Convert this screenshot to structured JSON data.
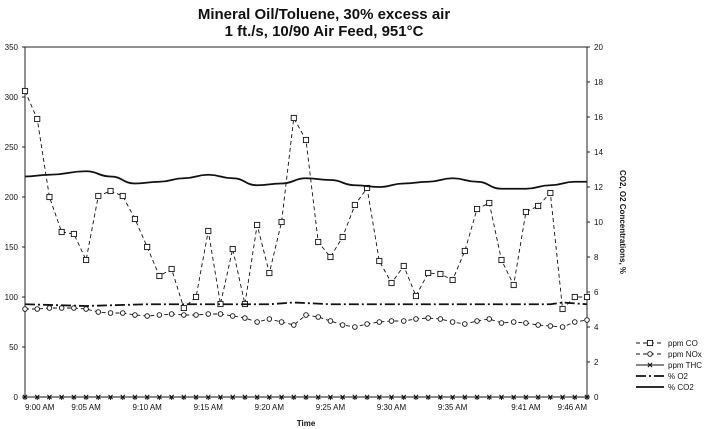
{
  "chart_data": {
    "type": "line",
    "title": "Mineral Oil/Toluene, 30% excess air",
    "subtitle": "1 ft./s, 10/90 Air Feed, 951°C",
    "xlabel": "Time",
    "y2label": "CO2, O2 Concentrations, %",
    "ylim": [
      0,
      350
    ],
    "y2lim": [
      0,
      20
    ],
    "yticks": [
      "0",
      "50",
      "100",
      "150",
      "200",
      "250",
      "300",
      "350"
    ],
    "y2ticks": [
      "0",
      "2",
      "4",
      "6",
      "8",
      "10",
      "12",
      "14",
      "16",
      "18",
      "20"
    ],
    "xlim": [
      0,
      46
    ],
    "xticks": [
      {
        "x": 0,
        "label": "9:00 AM"
      },
      {
        "x": 5,
        "label": "9:05 AM"
      },
      {
        "x": 10,
        "label": "9:10 AM"
      },
      {
        "x": 15,
        "label": "9:15 AM"
      },
      {
        "x": 20,
        "label": "9:20 AM"
      },
      {
        "x": 25,
        "label": "9:25 AM"
      },
      {
        "x": 30,
        "label": "9:30 AM"
      },
      {
        "x": 35,
        "label": "9:35 AM"
      },
      {
        "x": 41,
        "label": "9:41 AM"
      },
      {
        "x": 46,
        "label": "9:46 AM"
      }
    ],
    "legend_position": "bottom-right",
    "series": [
      {
        "name": "ppm CO",
        "axis": "left",
        "style": "dashed-square",
        "x": [
          0,
          1,
          2,
          3,
          4,
          5,
          6,
          7,
          8,
          9,
          10,
          11,
          12,
          13,
          14,
          15,
          16,
          17,
          18,
          19,
          20,
          21,
          22,
          23,
          24,
          25,
          26,
          27,
          28,
          29,
          30,
          31,
          32,
          33,
          34,
          35,
          36,
          37,
          38,
          39,
          40,
          41,
          42,
          43,
          44,
          45,
          46
        ],
        "values": [
          306,
          278,
          200,
          165,
          163,
          137,
          201,
          206,
          201,
          178,
          150,
          121,
          128,
          89,
          100,
          166,
          93,
          148,
          93,
          172,
          124,
          175,
          279,
          257,
          155,
          140,
          160,
          192,
          209,
          136,
          114,
          131,
          101,
          124,
          123,
          117,
          146,
          188,
          194,
          137,
          112,
          185,
          191,
          204,
          88,
          100,
          100
        ]
      },
      {
        "name": "ppm NOx",
        "axis": "left",
        "style": "dashed-circle",
        "x": [
          0,
          1,
          2,
          3,
          4,
          5,
          6,
          7,
          8,
          9,
          10,
          11,
          12,
          13,
          14,
          15,
          16,
          17,
          18,
          19,
          20,
          21,
          22,
          23,
          24,
          25,
          26,
          27,
          28,
          29,
          30,
          31,
          32,
          33,
          34,
          35,
          36,
          37,
          38,
          39,
          40,
          41,
          42,
          43,
          44,
          45,
          46
        ],
        "values": [
          88,
          88,
          89,
          89,
          89,
          88,
          85,
          84,
          84,
          82,
          81,
          82,
          83,
          82,
          82,
          83,
          83,
          81,
          79,
          75,
          78,
          75,
          72,
          82,
          80,
          76,
          72,
          70,
          73,
          75,
          76,
          76,
          78,
          79,
          78,
          75,
          73,
          76,
          78,
          74,
          75,
          74,
          72,
          71,
          70,
          75,
          77
        ]
      },
      {
        "name": "ppm THC",
        "axis": "left",
        "style": "solid-star",
        "x": [
          0,
          1,
          2,
          3,
          4,
          5,
          6,
          7,
          8,
          9,
          10,
          11,
          12,
          13,
          14,
          15,
          16,
          17,
          18,
          19,
          20,
          21,
          22,
          23,
          24,
          25,
          26,
          27,
          28,
          29,
          30,
          31,
          32,
          33,
          34,
          35,
          36,
          37,
          38,
          39,
          40,
          41,
          42,
          43,
          44,
          45,
          46
        ],
        "values": [
          0,
          0,
          0,
          0,
          0,
          0,
          0,
          0,
          0,
          0,
          0,
          0,
          0,
          0,
          0,
          0,
          0,
          0,
          0,
          0,
          0,
          0,
          0,
          0,
          0,
          0,
          0,
          0,
          0,
          0,
          0,
          0,
          0,
          0,
          0,
          0,
          0,
          0,
          0,
          0,
          0,
          0,
          0,
          0,
          0,
          0,
          0
        ]
      },
      {
        "name": "% O2",
        "axis": "right",
        "style": "dashdot",
        "x": [
          0,
          5,
          10,
          15,
          20,
          22,
          25,
          30,
          35,
          40,
          43,
          44,
          46
        ],
        "values": [
          5.3,
          5.2,
          5.3,
          5.3,
          5.3,
          5.4,
          5.3,
          5.3,
          5.3,
          5.3,
          5.3,
          5.4,
          5.3
        ]
      },
      {
        "name": "% CO2",
        "axis": "right",
        "style": "solid",
        "x": [
          0,
          2,
          5,
          7,
          9,
          11,
          13,
          15,
          17,
          19,
          21,
          23,
          25,
          27,
          29,
          31,
          33,
          35,
          37,
          39,
          41,
          43,
          45,
          46
        ],
        "values": [
          12.6,
          12.7,
          12.9,
          12.6,
          12.2,
          12.3,
          12.5,
          12.7,
          12.5,
          12.1,
          12.2,
          12.5,
          12.4,
          12.1,
          12.0,
          12.2,
          12.3,
          12.5,
          12.3,
          11.9,
          11.9,
          12.1,
          12.3,
          12.3
        ]
      }
    ]
  }
}
